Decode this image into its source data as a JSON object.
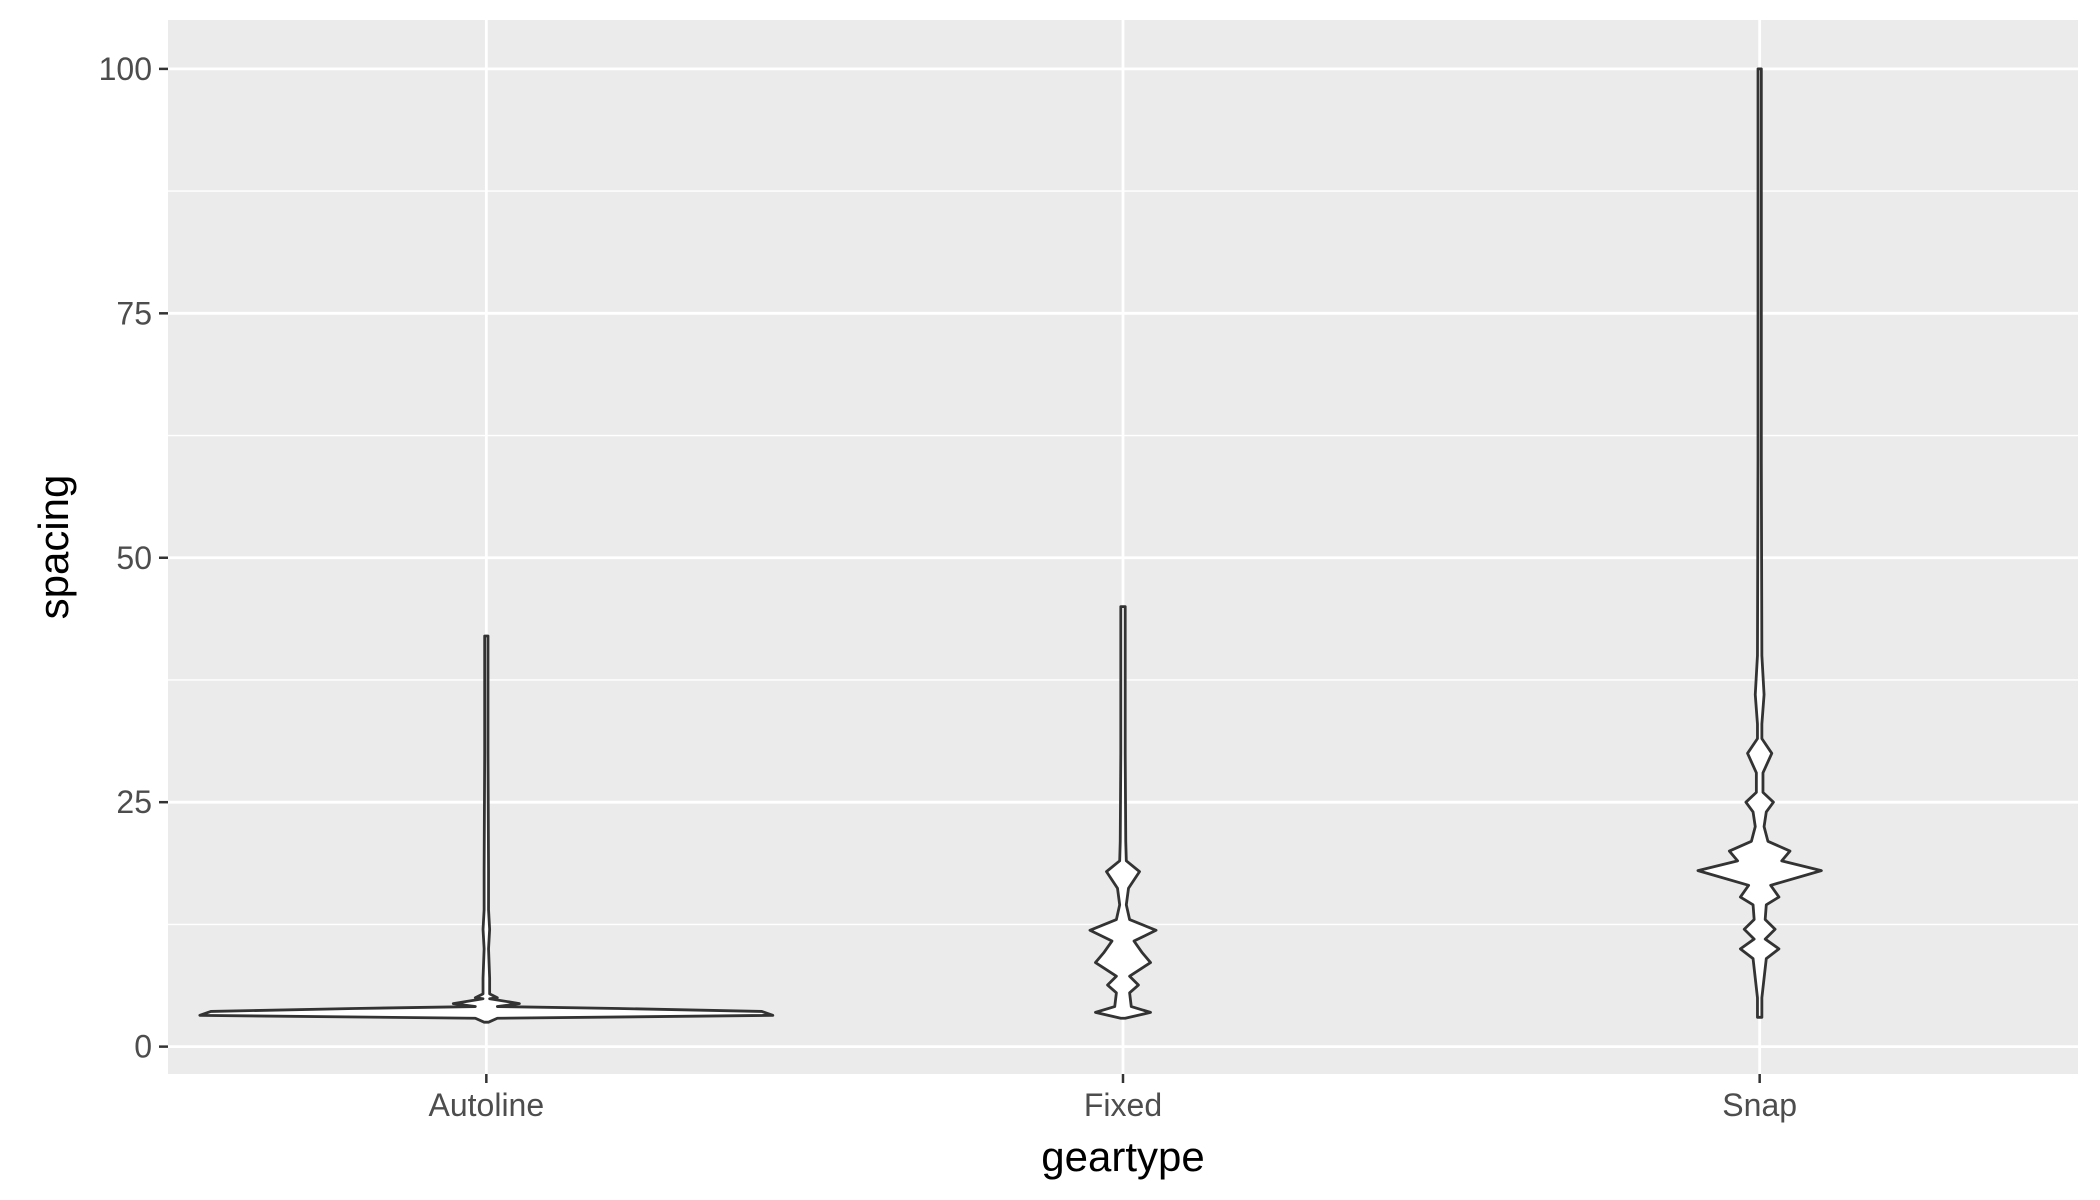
{
  "chart_data": {
    "type": "violin",
    "title": "",
    "xlabel": "geartype",
    "ylabel": "spacing",
    "categories": [
      "Autoline",
      "Fixed",
      "Snap"
    ],
    "ylim": [
      -2.8,
      105
    ],
    "yticks": [
      0,
      25,
      50,
      75,
      100
    ],
    "grid": true,
    "legend": "none",
    "colors": {
      "panel": "#EBEBEB",
      "grid": "#FFFFFF",
      "outline": "#333333",
      "fill": "#FFFFFF",
      "tick_text": "#4D4D4D",
      "title_text": "#000000"
    },
    "violins": [
      {
        "category": "Autoline",
        "min": 2.5,
        "max": 42,
        "profile": [
          [
            2.5,
            0.004
          ],
          [
            2.9,
            0.02
          ],
          [
            3.2,
            0.52
          ],
          [
            3.6,
            0.5
          ],
          [
            3.9,
            0.24
          ],
          [
            4.1,
            0.02
          ],
          [
            4.4,
            0.06
          ],
          [
            4.9,
            0.006
          ],
          [
            5.0,
            0.02
          ],
          [
            5.4,
            0.006
          ],
          [
            7.0,
            0.006
          ],
          [
            10,
            0.004
          ],
          [
            12,
            0.006
          ],
          [
            14,
            0.004
          ],
          [
            18,
            0.004
          ],
          [
            30,
            0.003
          ],
          [
            42,
            0.003
          ]
        ]
      },
      {
        "category": "Fixed",
        "min": 2.9,
        "max": 45,
        "profile": [
          [
            2.9,
            0.004
          ],
          [
            3.5,
            0.05
          ],
          [
            4.1,
            0.015
          ],
          [
            5.5,
            0.012
          ],
          [
            6.3,
            0.028
          ],
          [
            7.2,
            0.012
          ],
          [
            8.6,
            0.05
          ],
          [
            9.6,
            0.035
          ],
          [
            10.8,
            0.02
          ],
          [
            11.9,
            0.06
          ],
          [
            13.0,
            0.012
          ],
          [
            14.5,
            0.006
          ],
          [
            16.2,
            0.01
          ],
          [
            17.9,
            0.03
          ],
          [
            19.0,
            0.006
          ],
          [
            21,
            0.005
          ],
          [
            30,
            0.004
          ],
          [
            45,
            0.004
          ]
        ]
      },
      {
        "category": "Snap",
        "min": 3,
        "max": 100,
        "profile": [
          [
            3,
            0.004
          ],
          [
            5,
            0.004
          ],
          [
            7,
            0.008
          ],
          [
            9,
            0.012
          ],
          [
            10,
            0.035
          ],
          [
            11,
            0.01
          ],
          [
            12,
            0.028
          ],
          [
            13,
            0.01
          ],
          [
            14.5,
            0.012
          ],
          [
            15.3,
            0.035
          ],
          [
            16.5,
            0.02
          ],
          [
            18,
            0.112
          ],
          [
            19,
            0.04
          ],
          [
            20,
            0.055
          ],
          [
            21,
            0.015
          ],
          [
            22.5,
            0.008
          ],
          [
            24,
            0.012
          ],
          [
            25,
            0.025
          ],
          [
            26,
            0.006
          ],
          [
            28,
            0.006
          ],
          [
            30,
            0.022
          ],
          [
            31.5,
            0.004
          ],
          [
            33,
            0.004
          ],
          [
            36,
            0.008
          ],
          [
            40,
            0.004
          ],
          [
            60,
            0.003
          ],
          [
            100,
            0.003
          ]
        ]
      }
    ]
  }
}
